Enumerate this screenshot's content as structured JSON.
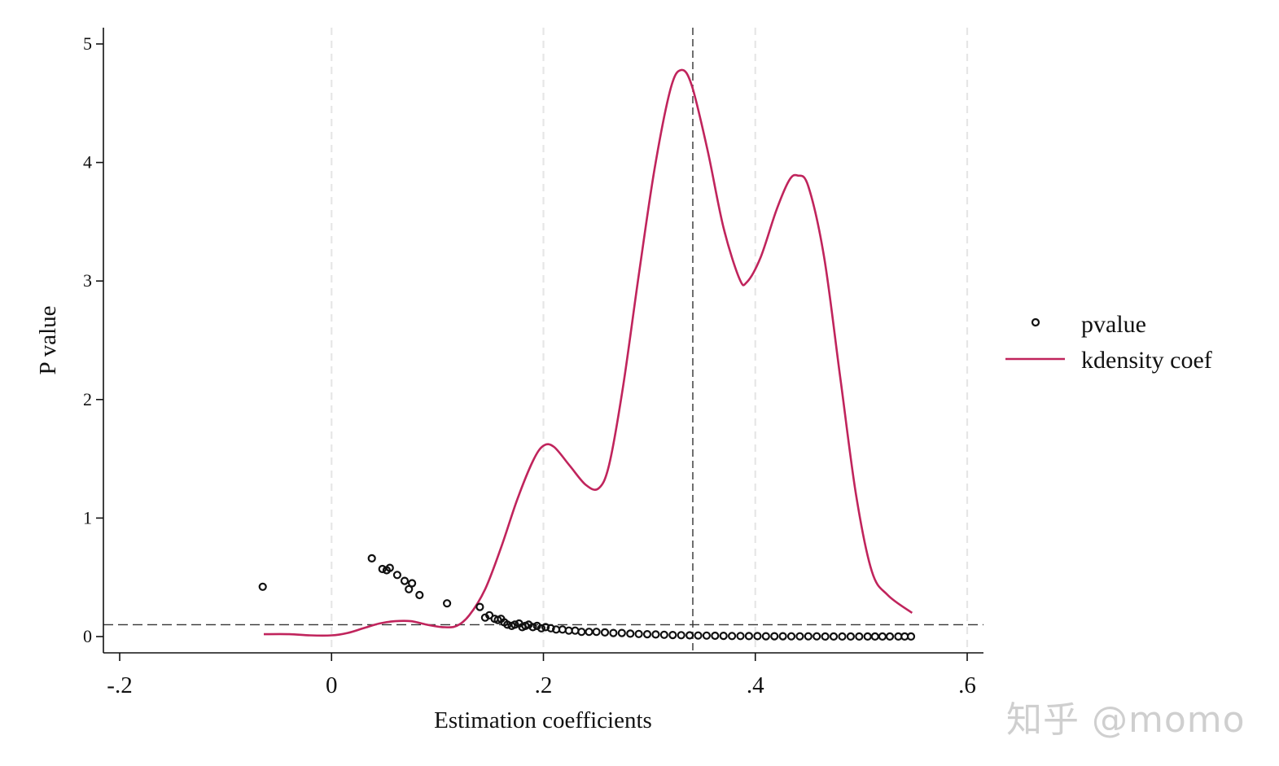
{
  "chart_data": {
    "type": "scatter",
    "xlabel": "Estimation coefficients",
    "ylabel": "P value",
    "xlim": [
      -0.2,
      0.6
    ],
    "ylim": [
      0,
      5
    ],
    "x_ticks": [
      {
        "value": -0.2,
        "label": "-.2"
      },
      {
        "value": 0,
        "label": "0"
      },
      {
        "value": 0.2,
        "label": ".2"
      },
      {
        "value": 0.4,
        "label": ".4"
      },
      {
        "value": 0.6,
        "label": ".6"
      }
    ],
    "y_ticks": [
      {
        "value": 0,
        "label": "0"
      },
      {
        "value": 1,
        "label": "1"
      },
      {
        "value": 2,
        "label": "2"
      },
      {
        "value": 3,
        "label": "3"
      },
      {
        "value": 4,
        "label": "4"
      },
      {
        "value": 5,
        "label": "5"
      }
    ],
    "x_gridlines": [
      0,
      0.2,
      0.4,
      0.6
    ],
    "reference_lines": {
      "vertical_x": 0.341,
      "horizontal_y": 0.1
    },
    "series": [
      {
        "name": "pvalue",
        "kind": "scatter",
        "color": "#111111",
        "points": [
          [
            -0.065,
            0.42
          ],
          [
            0.038,
            0.66
          ],
          [
            0.048,
            0.57
          ],
          [
            0.052,
            0.56
          ],
          [
            0.055,
            0.58
          ],
          [
            0.062,
            0.52
          ],
          [
            0.069,
            0.47
          ],
          [
            0.073,
            0.4
          ],
          [
            0.076,
            0.45
          ],
          [
            0.083,
            0.35
          ],
          [
            0.109,
            0.28
          ],
          [
            0.14,
            0.25
          ],
          [
            0.145,
            0.16
          ],
          [
            0.149,
            0.18
          ],
          [
            0.154,
            0.15
          ],
          [
            0.157,
            0.14
          ],
          [
            0.16,
            0.15
          ],
          [
            0.163,
            0.12
          ],
          [
            0.166,
            0.1
          ],
          [
            0.17,
            0.09
          ],
          [
            0.173,
            0.1
          ],
          [
            0.177,
            0.11
          ],
          [
            0.18,
            0.08
          ],
          [
            0.183,
            0.09
          ],
          [
            0.186,
            0.1
          ],
          [
            0.19,
            0.08
          ],
          [
            0.194,
            0.09
          ],
          [
            0.198,
            0.07
          ],
          [
            0.202,
            0.08
          ],
          [
            0.207,
            0.07
          ],
          [
            0.212,
            0.06
          ],
          [
            0.218,
            0.06
          ],
          [
            0.224,
            0.05
          ],
          [
            0.23,
            0.05
          ],
          [
            0.236,
            0.04
          ],
          [
            0.243,
            0.04
          ],
          [
            0.25,
            0.04
          ],
          [
            0.258,
            0.035
          ],
          [
            0.266,
            0.03
          ],
          [
            0.274,
            0.03
          ],
          [
            0.282,
            0.025
          ],
          [
            0.29,
            0.022
          ],
          [
            0.298,
            0.02
          ],
          [
            0.306,
            0.018
          ],
          [
            0.314,
            0.015
          ],
          [
            0.322,
            0.013
          ],
          [
            0.33,
            0.012
          ],
          [
            0.338,
            0.01
          ],
          [
            0.346,
            0.009
          ],
          [
            0.354,
            0.008
          ],
          [
            0.362,
            0.007
          ],
          [
            0.37,
            0.006
          ],
          [
            0.378,
            0.005
          ],
          [
            0.386,
            0.005
          ],
          [
            0.394,
            0.004
          ],
          [
            0.402,
            0.004
          ],
          [
            0.41,
            0.003
          ],
          [
            0.418,
            0.003
          ],
          [
            0.426,
            0.003
          ],
          [
            0.434,
            0.002
          ],
          [
            0.442,
            0.002
          ],
          [
            0.45,
            0.002
          ],
          [
            0.458,
            0.002
          ],
          [
            0.466,
            0.001
          ],
          [
            0.474,
            0.001
          ],
          [
            0.482,
            0.001
          ],
          [
            0.49,
            0.001
          ],
          [
            0.498,
            0.001
          ],
          [
            0.506,
            0.001
          ],
          [
            0.513,
            0.001
          ],
          [
            0.52,
            0.001
          ],
          [
            0.527,
            0.001
          ],
          [
            0.535,
            0.001
          ],
          [
            0.541,
            0.001
          ],
          [
            0.547,
            0.001
          ]
        ]
      },
      {
        "name": "kdensity coef",
        "kind": "line",
        "color": "#c0245c",
        "points": [
          [
            -0.064,
            0.02
          ],
          [
            -0.04,
            0.02
          ],
          [
            -0.02,
            0.01
          ],
          [
            0.0,
            0.01
          ],
          [
            0.015,
            0.03
          ],
          [
            0.03,
            0.07
          ],
          [
            0.045,
            0.11
          ],
          [
            0.06,
            0.13
          ],
          [
            0.075,
            0.13
          ],
          [
            0.09,
            0.1
          ],
          [
            0.105,
            0.08
          ],
          [
            0.118,
            0.09
          ],
          [
            0.13,
            0.18
          ],
          [
            0.145,
            0.4
          ],
          [
            0.16,
            0.75
          ],
          [
            0.175,
            1.15
          ],
          [
            0.19,
            1.48
          ],
          [
            0.2,
            1.61
          ],
          [
            0.21,
            1.6
          ],
          [
            0.225,
            1.44
          ],
          [
            0.24,
            1.28
          ],
          [
            0.252,
            1.25
          ],
          [
            0.262,
            1.45
          ],
          [
            0.275,
            2.1
          ],
          [
            0.29,
            3.05
          ],
          [
            0.305,
            3.95
          ],
          [
            0.32,
            4.62
          ],
          [
            0.33,
            4.78
          ],
          [
            0.34,
            4.65
          ],
          [
            0.355,
            4.1
          ],
          [
            0.37,
            3.45
          ],
          [
            0.385,
            3.02
          ],
          [
            0.392,
            2.99
          ],
          [
            0.405,
            3.2
          ],
          [
            0.42,
            3.6
          ],
          [
            0.432,
            3.85
          ],
          [
            0.44,
            3.89
          ],
          [
            0.45,
            3.8
          ],
          [
            0.465,
            3.2
          ],
          [
            0.48,
            2.2
          ],
          [
            0.495,
            1.2
          ],
          [
            0.51,
            0.55
          ],
          [
            0.525,
            0.35
          ],
          [
            0.548,
            0.2
          ]
        ]
      }
    ],
    "legend": {
      "position": "right",
      "entries": [
        "pvalue",
        "kdensity coef"
      ]
    }
  },
  "watermark": "知乎 @momo"
}
